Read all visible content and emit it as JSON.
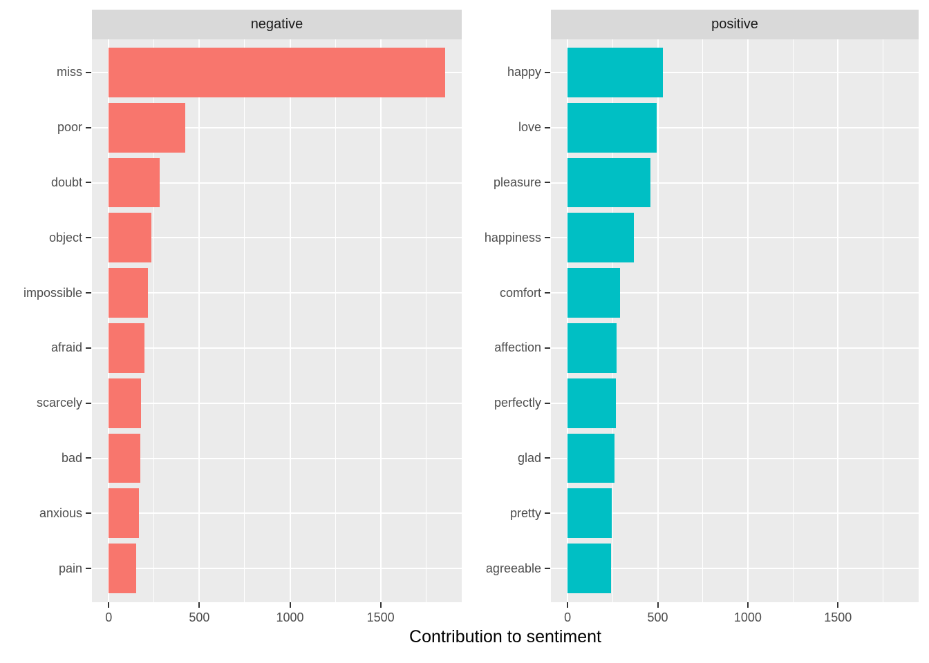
{
  "chart_data": {
    "type": "bar",
    "orientation": "horizontal",
    "xlabel": "Contribution to sentiment",
    "facets": [
      {
        "label": "negative",
        "color": "#F8766D",
        "categories": [
          "miss",
          "poor",
          "doubt",
          "object",
          "impossible",
          "afraid",
          "scarcely",
          "bad",
          "anxious",
          "pain"
        ],
        "values": [
          1855,
          424,
          281,
          234,
          218,
          198,
          177,
          176,
          168,
          152
        ]
      },
      {
        "label": "positive",
        "color": "#00BFC4",
        "categories": [
          "happy",
          "love",
          "pleasure",
          "happiness",
          "comfort",
          "affection",
          "perfectly",
          "glad",
          "pretty",
          "agreeable"
        ],
        "values": [
          530,
          495,
          460,
          368,
          291,
          272,
          267,
          261,
          244,
          240
        ]
      }
    ],
    "x_ticks": [
      0,
      500,
      1000,
      1500
    ],
    "x_minor_ticks": [
      250,
      750,
      1250,
      1750
    ],
    "xlim": [
      -92.75,
      1947.75
    ],
    "grid": true,
    "legend_position": "none",
    "panel_bg": "#EBEBEB",
    "strip_bg": "#D9D9D9",
    "grid_color": "#FFFFFF",
    "axis_text_color": "#4D4D4D",
    "strip_text_color": "#1A1A1A",
    "tick_mark_color": "#333333"
  }
}
